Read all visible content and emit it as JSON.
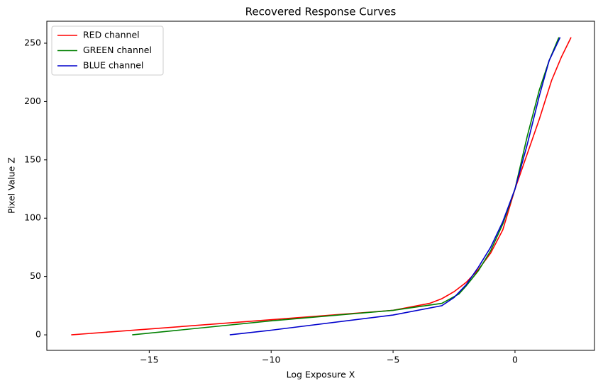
{
  "chart_data": {
    "type": "line",
    "title": "Recovered Response Curves",
    "x_label": "Log Exposure X",
    "y_label": "Pixel Value Z",
    "xlim": [
      -19.2,
      3.26
    ],
    "ylim": [
      -13.3,
      268.8
    ],
    "xticks": [
      {
        "value": -15,
        "label": "−15"
      },
      {
        "value": -10,
        "label": "−10"
      },
      {
        "value": -5,
        "label": "−5"
      },
      0
    ],
    "yticks": [
      0,
      50,
      100,
      150,
      200,
      250
    ],
    "grid": false,
    "legend": "upper-left",
    "series": [
      {
        "name": "RED channel",
        "color": "#ff0000",
        "x": [
          -18.2,
          -15,
          -10,
          -5,
          -3.5,
          -3,
          -2.5,
          -2,
          -1.5,
          -1,
          -0.5,
          0,
          0.5,
          1,
          1.5,
          1.9,
          2.3
        ],
        "values": [
          0,
          5,
          13,
          21,
          27,
          31,
          37,
          45,
          56,
          70,
          90,
          125,
          155,
          185,
          218,
          238,
          255
        ]
      },
      {
        "name": "GREEN channel",
        "color": "#008000",
        "x": [
          -15.7,
          -10,
          -5,
          -3,
          -2.3,
          -2,
          -1.5,
          -1,
          -0.5,
          0,
          0.5,
          1,
          1.4,
          1.8
        ],
        "values": [
          0,
          12,
          21,
          27,
          35,
          42,
          55,
          72,
          95,
          125,
          170,
          210,
          235,
          255
        ]
      },
      {
        "name": "BLUE channel",
        "color": "#0000cc",
        "x": [
          -11.7,
          -10,
          -5,
          -3,
          -2.5,
          -2,
          -1.5,
          -1,
          -0.5,
          0,
          0.5,
          1,
          1.4,
          1.85
        ],
        "values": [
          0,
          4,
          17,
          25,
          32,
          43,
          58,
          75,
          97,
          125,
          163,
          205,
          235,
          255
        ]
      }
    ]
  }
}
